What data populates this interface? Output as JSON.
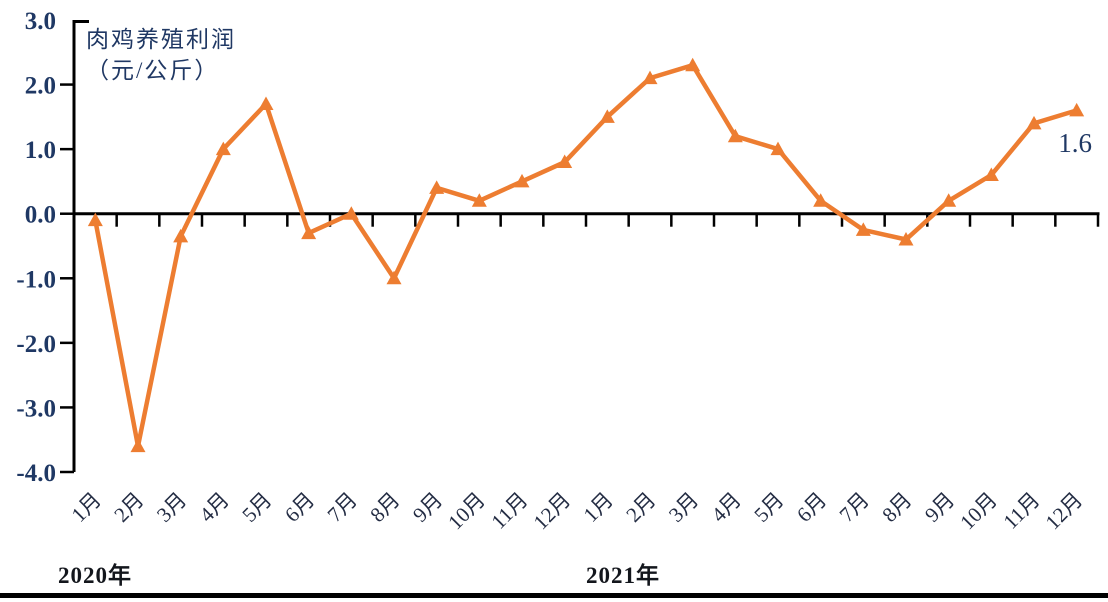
{
  "title": {
    "line1": "肉鸡养殖利润",
    "line2": "（元/公斤）"
  },
  "annotation": {
    "last_value_label": "1.6"
  },
  "colors": {
    "line": "#ED7D31",
    "axis": "#000000",
    "tick_text": "#1f3864",
    "month_text": "#242d44",
    "year_text": "#13161c"
  },
  "chart_data": {
    "type": "line",
    "title": "肉鸡养殖利润（元/公斤）",
    "xlabel": "",
    "ylabel": "元/公斤",
    "ylim": [
      -4.0,
      3.0
    ],
    "ytick_interval": 1.0,
    "ytick_labels": [
      "3.0",
      "2.0",
      "1.0",
      "0.0",
      "-1.0",
      "-2.0",
      "-3.0",
      "-4.0"
    ],
    "grid": false,
    "legend": "none",
    "marker": "triangle",
    "categories": [
      "1月",
      "2月",
      "3月",
      "4月",
      "5月",
      "6月",
      "7月",
      "8月",
      "9月",
      "10月",
      "11月",
      "12月",
      "1月",
      "2月",
      "3月",
      "4月",
      "5月",
      "6月",
      "7月",
      "8月",
      "9月",
      "10月",
      "11月",
      "12月"
    ],
    "year_groups": [
      {
        "label": "2020年",
        "start_index": 0
      },
      {
        "label": "2021年",
        "start_index": 12
      }
    ],
    "series": [
      {
        "name": "肉鸡养殖利润",
        "values": [
          -0.1,
          -3.6,
          -0.35,
          1.0,
          1.7,
          -0.3,
          0.0,
          -1.0,
          0.4,
          0.2,
          0.5,
          0.8,
          1.5,
          2.1,
          2.3,
          1.2,
          1.0,
          0.2,
          -0.25,
          -0.4,
          0.2,
          0.6,
          1.4,
          1.6
        ]
      }
    ],
    "point_label": {
      "series": 0,
      "index": 23,
      "text": "1.6"
    }
  }
}
